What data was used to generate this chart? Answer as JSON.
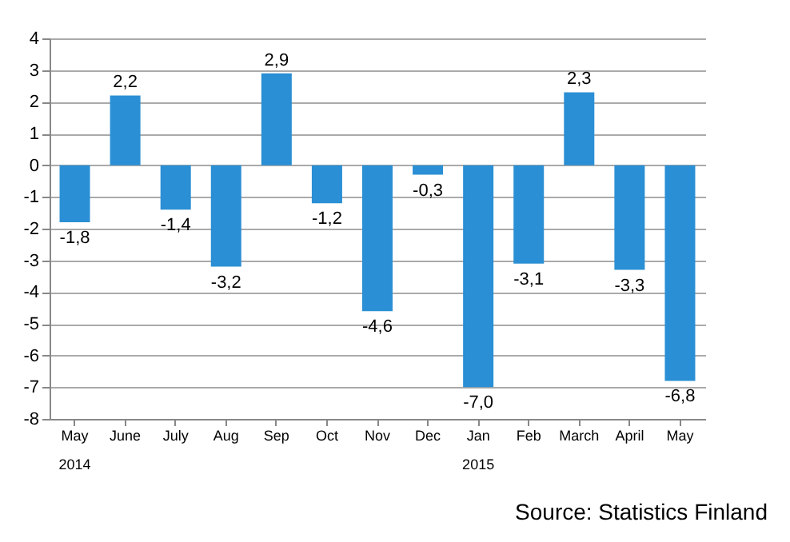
{
  "chart_data": {
    "type": "bar",
    "categories": [
      "May\n2014",
      "June",
      "July",
      "Aug",
      "Sep",
      "Oct",
      "Nov",
      "Dec",
      "Jan\n2015",
      "Feb",
      "March",
      "April",
      "May"
    ],
    "values": [
      -1.8,
      2.2,
      -1.4,
      -3.2,
      2.9,
      -1.2,
      -4.6,
      -0.3,
      -7.0,
      -3.1,
      2.3,
      -3.3,
      -6.8
    ],
    "value_labels": [
      "-1,8",
      "2,2",
      "-1,4",
      "-3,2",
      "2,9",
      "-1,2",
      "-4,6",
      "-0,3",
      "-7,0",
      "-3,1",
      "2,3",
      "-3,3",
      "-6,8"
    ],
    "color": "#2a8fd4",
    "ylim": [
      -8,
      4
    ],
    "yticks": [
      -8,
      -7,
      -6,
      -5,
      -4,
      -3,
      -2,
      -1,
      0,
      1,
      2,
      3,
      4
    ],
    "grid": "y",
    "annotations": [
      "Source: Statistics Finland"
    ]
  }
}
